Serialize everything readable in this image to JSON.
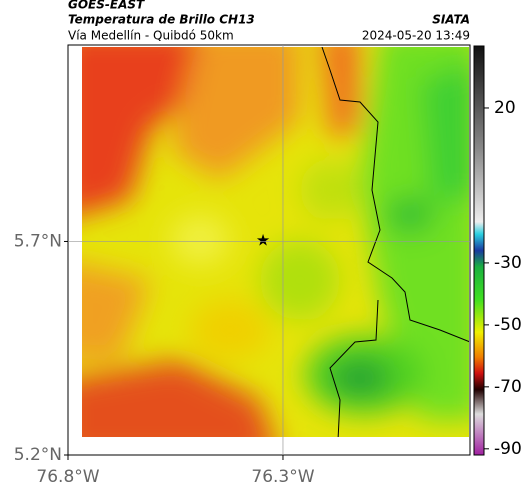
{
  "header": {
    "title": "GOES-EAST",
    "subtitle": "Temperatura de Brillo CH13",
    "location": "Vía Medellín - Quibdó 50km",
    "source": "SIATA",
    "datetime": "2024-05-20 13:49"
  },
  "map": {
    "xlim": [
      -76.8,
      -75.865
    ],
    "ylim": [
      5.2,
      6.16
    ],
    "xticks": [
      {
        "value": -76.8,
        "label": "76.8°W"
      },
      {
        "value": -76.3,
        "label": "76.3°W"
      }
    ],
    "yticks": [
      {
        "value": 5.2,
        "label": "5.2°N"
      },
      {
        "value": 5.7,
        "label": "5.7°N"
      }
    ],
    "grid": true
  },
  "colorbar": {
    "lim": [
      -92,
      40
    ],
    "ticks": [
      20,
      -30,
      -50,
      -70,
      -90
    ]
  }
}
